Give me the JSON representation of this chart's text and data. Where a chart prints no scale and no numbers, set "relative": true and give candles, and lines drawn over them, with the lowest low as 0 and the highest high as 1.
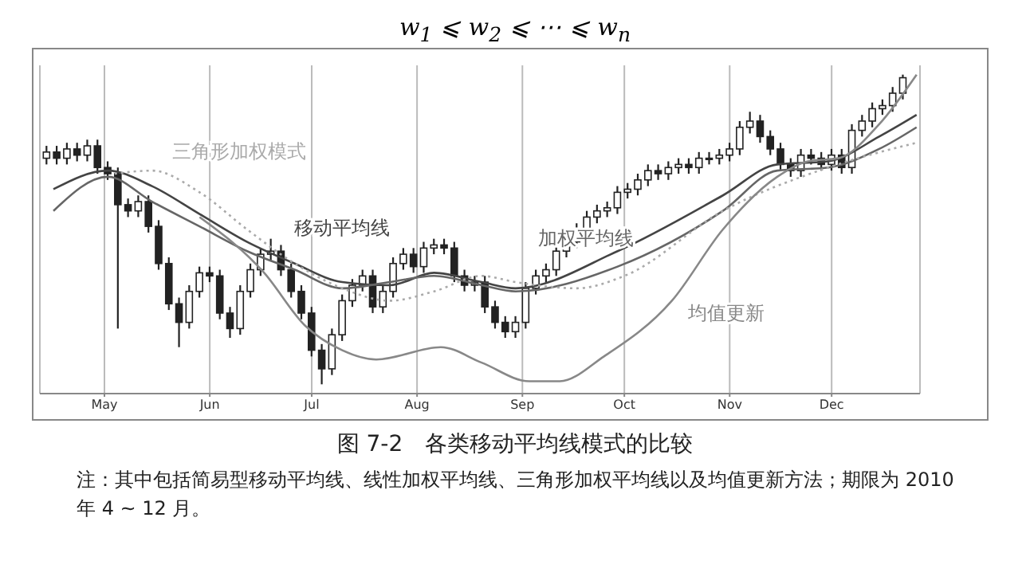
{
  "chart_data": {
    "type": "candlestick",
    "relative": true,
    "title": "图 7-2　各类移动平均线模式的比较",
    "annotations": [
      "w$_{1}$ ⩽ w$_{2}$ ⩽ ⋯ ⩽ w$_{n}$",
      "注：其中包括简易型移动平均线、线性加权平均线、三角形加权平均线以及均值更新方法；期限为 2010 年 4 ~ 12 月。"
    ],
    "xlim": [
      "2010-04-12",
      "2010-12-27"
    ],
    "xticks": [
      {
        "value": "2010-05-01",
        "label": "May"
      },
      {
        "value": "2010-06-01",
        "label": "Jun"
      },
      {
        "value": "2010-07-01",
        "label": "Jul"
      },
      {
        "value": "2010-08-01",
        "label": "Aug"
      },
      {
        "value": "2010-09-01",
        "label": "Sep"
      },
      {
        "value": "2010-10-01",
        "label": "Oct"
      },
      {
        "value": "2010-11-01",
        "label": "Nov"
      },
      {
        "value": "2010-12-01",
        "label": "Dec"
      }
    ],
    "grid": "x",
    "marker": "none",
    "series": [
      {
        "color": "#222222",
        "x": [
          "2010-04-14",
          "2010-04-17",
          "2010-04-20",
          "2010-04-23",
          "2010-04-26",
          "2010-04-29",
          "2010-05-02",
          "2010-05-05",
          "2010-05-08",
          "2010-05-11",
          "2010-05-14",
          "2010-05-17",
          "2010-05-20",
          "2010-05-23",
          "2010-05-26",
          "2010-05-29",
          "2010-06-01",
          "2010-06-04",
          "2010-06-07",
          "2010-06-10",
          "2010-06-13",
          "2010-06-16",
          "2010-06-19",
          "2010-06-22",
          "2010-06-25",
          "2010-06-28",
          "2010-07-01",
          "2010-07-04",
          "2010-07-07",
          "2010-07-10",
          "2010-07-13",
          "2010-07-16",
          "2010-07-19",
          "2010-07-22",
          "2010-07-25",
          "2010-07-28",
          "2010-07-31",
          "2010-08-03",
          "2010-08-06",
          "2010-08-09",
          "2010-08-12",
          "2010-08-15",
          "2010-08-18",
          "2010-08-21",
          "2010-08-24",
          "2010-08-27",
          "2010-08-30",
          "2010-09-02",
          "2010-09-05",
          "2010-09-08",
          "2010-09-11",
          "2010-09-14",
          "2010-09-17",
          "2010-09-20",
          "2010-09-23",
          "2010-09-26",
          "2010-09-29",
          "2010-10-02",
          "2010-10-05",
          "2010-10-08",
          "2010-10-11",
          "2010-10-14",
          "2010-10-17",
          "2010-10-20",
          "2010-10-23",
          "2010-10-26",
          "2010-10-29",
          "2010-11-01",
          "2010-11-04",
          "2010-11-07",
          "2010-11-10",
          "2010-11-13",
          "2010-11-16",
          "2010-11-19",
          "2010-11-22",
          "2010-11-25",
          "2010-11-28",
          "2010-12-01",
          "2010-12-04",
          "2010-12-07",
          "2010-12-10",
          "2010-12-13",
          "2010-12-16",
          "2010-12-19",
          "2010-12-22"
        ],
        "ohlc": [
          [
            0.73,
            0.77,
            0.71,
            0.75
          ],
          [
            0.75,
            0.77,
            0.71,
            0.73
          ],
          [
            0.73,
            0.78,
            0.71,
            0.76
          ],
          [
            0.76,
            0.78,
            0.72,
            0.74
          ],
          [
            0.74,
            0.79,
            0.72,
            0.77
          ],
          [
            0.77,
            0.79,
            0.68,
            0.7
          ],
          [
            0.7,
            0.72,
            0.66,
            0.68
          ],
          [
            0.68,
            0.7,
            0.18,
            0.58
          ],
          [
            0.58,
            0.6,
            0.54,
            0.56
          ],
          [
            0.56,
            0.61,
            0.54,
            0.59
          ],
          [
            0.59,
            0.61,
            0.49,
            0.51
          ],
          [
            0.51,
            0.53,
            0.37,
            0.39
          ],
          [
            0.39,
            0.41,
            0.24,
            0.26
          ],
          [
            0.26,
            0.28,
            0.12,
            0.2
          ],
          [
            0.2,
            0.32,
            0.18,
            0.3
          ],
          [
            0.3,
            0.38,
            0.28,
            0.36
          ],
          [
            0.36,
            0.38,
            0.33,
            0.35
          ],
          [
            0.35,
            0.37,
            0.21,
            0.23
          ],
          [
            0.23,
            0.25,
            0.15,
            0.18
          ],
          [
            0.18,
            0.32,
            0.16,
            0.3
          ],
          [
            0.3,
            0.39,
            0.28,
            0.37
          ],
          [
            0.37,
            0.44,
            0.35,
            0.42
          ],
          [
            0.42,
            0.47,
            0.4,
            0.43
          ],
          [
            0.43,
            0.45,
            0.35,
            0.37
          ],
          [
            0.37,
            0.39,
            0.28,
            0.3
          ],
          [
            0.3,
            0.32,
            0.21,
            0.23
          ],
          [
            0.23,
            0.25,
            0.09,
            0.11
          ],
          [
            0.11,
            0.13,
            0,
            0.05
          ],
          [
            0.05,
            0.18,
            0.03,
            0.16
          ],
          [
            0.16,
            0.29,
            0.14,
            0.27
          ],
          [
            0.27,
            0.34,
            0.25,
            0.32
          ],
          [
            0.32,
            0.37,
            0.3,
            0.35
          ],
          [
            0.35,
            0.37,
            0.23,
            0.25
          ],
          [
            0.25,
            0.32,
            0.23,
            0.3
          ],
          [
            0.3,
            0.41,
            0.28,
            0.39
          ],
          [
            0.39,
            0.44,
            0.37,
            0.42
          ],
          [
            0.42,
            0.44,
            0.36,
            0.38
          ],
          [
            0.38,
            0.46,
            0.36,
            0.44
          ],
          [
            0.44,
            0.47,
            0.42,
            0.45
          ],
          [
            0.45,
            0.47,
            0.42,
            0.44
          ],
          [
            0.44,
            0.46,
            0.33,
            0.35
          ],
          [
            0.35,
            0.37,
            0.3,
            0.32
          ],
          [
            0.32,
            0.35,
            0.3,
            0.33
          ],
          [
            0.33,
            0.35,
            0.23,
            0.25
          ],
          [
            0.25,
            0.27,
            0.18,
            0.2
          ],
          [
            0.2,
            0.22,
            0.15,
            0.17
          ],
          [
            0.17,
            0.22,
            0.15,
            0.2
          ],
          [
            0.2,
            0.33,
            0.18,
            0.31
          ],
          [
            0.31,
            0.37,
            0.29,
            0.35
          ],
          [
            0.35,
            0.39,
            0.33,
            0.37
          ],
          [
            0.37,
            0.45,
            0.35,
            0.43
          ],
          [
            0.43,
            0.48,
            0.41,
            0.46
          ],
          [
            0.46,
            0.52,
            0.44,
            0.5
          ],
          [
            0.5,
            0.56,
            0.48,
            0.54
          ],
          [
            0.54,
            0.58,
            0.52,
            0.56
          ],
          [
            0.56,
            0.59,
            0.54,
            0.57
          ],
          [
            0.57,
            0.64,
            0.55,
            0.62
          ],
          [
            0.62,
            0.65,
            0.6,
            0.63
          ],
          [
            0.63,
            0.68,
            0.61,
            0.66
          ],
          [
            0.66,
            0.71,
            0.64,
            0.69
          ],
          [
            0.69,
            0.71,
            0.66,
            0.68
          ],
          [
            0.68,
            0.72,
            0.66,
            0.7
          ],
          [
            0.7,
            0.73,
            0.68,
            0.71
          ],
          [
            0.71,
            0.73,
            0.68,
            0.7
          ],
          [
            0.7,
            0.75,
            0.68,
            0.73
          ],
          [
            0.73,
            0.75,
            0.71,
            0.73
          ],
          [
            0.73,
            0.76,
            0.71,
            0.74
          ],
          [
            0.74,
            0.78,
            0.72,
            0.76
          ],
          [
            0.76,
            0.85,
            0.74,
            0.83
          ],
          [
            0.83,
            0.88,
            0.81,
            0.85
          ],
          [
            0.85,
            0.87,
            0.78,
            0.8
          ],
          [
            0.8,
            0.82,
            0.74,
            0.76
          ],
          [
            0.76,
            0.78,
            0.69,
            0.71
          ],
          [
            0.71,
            0.73,
            0.67,
            0.69
          ],
          [
            0.69,
            0.76,
            0.67,
            0.74
          ],
          [
            0.74,
            0.76,
            0.71,
            0.73
          ],
          [
            0.73,
            0.75,
            0.69,
            0.71
          ],
          [
            0.71,
            0.76,
            0.69,
            0.74
          ],
          [
            0.74,
            0.76,
            0.68,
            0.7
          ],
          [
            0.7,
            0.84,
            0.68,
            0.82
          ],
          [
            0.82,
            0.87,
            0.8,
            0.85
          ],
          [
            0.85,
            0.91,
            0.83,
            0.89
          ],
          [
            0.89,
            0.92,
            0.87,
            0.9
          ],
          [
            0.9,
            0.96,
            0.88,
            0.94
          ],
          [
            0.94,
            1,
            0.92,
            0.99
          ]
        ]
      },
      {
        "type": "line",
        "name": "移动平均线",
        "color": "#444444",
        "line_style": "solid",
        "x": [
          "2010-04-16",
          "2010-05-02",
          "2010-05-15",
          "2010-05-29",
          "2010-06-12",
          "2010-06-26",
          "2010-07-10",
          "2010-07-24",
          "2010-08-06",
          "2010-08-20",
          "2010-08-30",
          "2010-09-29",
          "2010-10-30",
          "2010-11-15",
          "2010-11-30",
          "2010-12-15",
          "2010-12-26"
        ],
        "values": [
          0.63,
          0.69,
          0.64,
          0.55,
          0.46,
          0.39,
          0.33,
          0.32,
          0.36,
          0.33,
          0.31,
          0.43,
          0.61,
          0.71,
          0.72,
          0.8,
          0.87
        ]
      },
      {
        "type": "line",
        "name": "加权平均线",
        "color": "#666666",
        "line_style": "solid",
        "x": [
          "2010-04-16",
          "2010-05-02",
          "2010-05-15",
          "2010-05-29",
          "2010-06-12",
          "2010-06-26",
          "2010-07-10",
          "2010-07-24",
          "2010-08-06",
          "2010-08-20",
          "2010-08-30",
          "2010-09-29",
          "2010-10-30",
          "2010-11-15",
          "2010-11-30",
          "2010-12-15",
          "2010-12-26"
        ],
        "values": [
          0.56,
          0.67,
          0.59,
          0.51,
          0.43,
          0.37,
          0.31,
          0.33,
          0.35,
          0.32,
          0.3,
          0.38,
          0.56,
          0.69,
          0.7,
          0.76,
          0.83
        ]
      },
      {
        "type": "line",
        "name": "三角形加权模式",
        "color": "#aaaaaa",
        "line_style": "dotted",
        "x": [
          "2010-05-04",
          "2010-05-15",
          "2010-05-29",
          "2010-06-12",
          "2010-06-26",
          "2010-07-10",
          "2010-07-24",
          "2010-08-06",
          "2010-08-20",
          "2010-08-30",
          "2010-09-17",
          "2010-10-01",
          "2010-10-30",
          "2010-11-30",
          "2010-12-26"
        ],
        "values": [
          0.68,
          0.69,
          0.62,
          0.5,
          0.39,
          0.31,
          0.27,
          0.3,
          0.35,
          0.33,
          0.31,
          0.35,
          0.56,
          0.7,
          0.78
        ]
      },
      {
        "type": "line",
        "name": "均值更新",
        "color": "#888888",
        "line_style": "solid",
        "x": [
          "2010-05-29",
          "2010-06-17",
          "2010-06-29",
          "2010-07-10",
          "2010-07-20",
          "2010-08-08",
          "2010-08-20",
          "2010-09-03",
          "2010-09-12",
          "2010-09-25",
          "2010-10-15",
          "2010-10-30",
          "2010-11-15",
          "2010-11-24",
          "2010-12-03",
          "2010-12-15",
          "2010-12-26"
        ],
        "values": [
          0.54,
          0.36,
          0.19,
          0.11,
          0.08,
          0.12,
          0.07,
          0.01,
          0.01,
          0.09,
          0.27,
          0.5,
          0.67,
          0.72,
          0.73,
          0.84,
          1
        ]
      }
    ]
  }
}
